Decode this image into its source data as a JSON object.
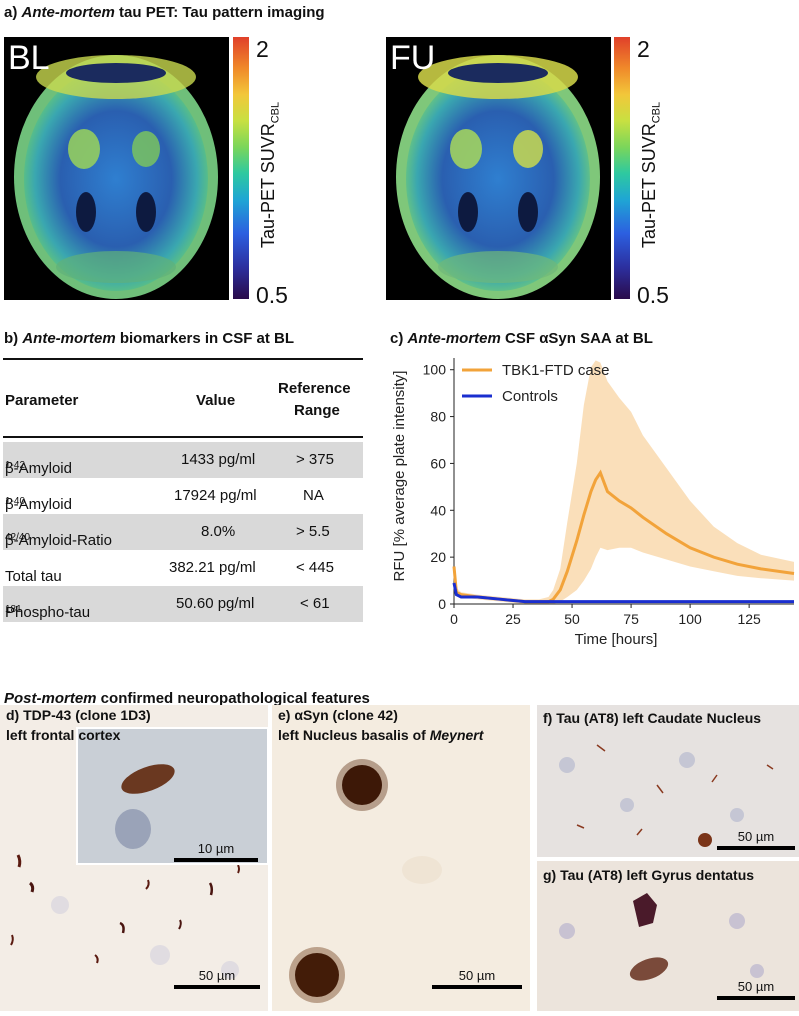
{
  "section_a": {
    "title_prefix": "a) ",
    "title_italic": "Ante-mortem",
    "title_rest": " tau PET: Tau pattern imaging",
    "images": [
      {
        "label": "BL"
      },
      {
        "label": "FU"
      }
    ],
    "colorbar": {
      "max": "2",
      "min": "0.5",
      "title_main": "Tau-PET SUVR",
      "title_sub": "CBL",
      "colors": [
        "#2a0b4a",
        "#2c2f9e",
        "#2c5fe0",
        "#1fa6d4",
        "#2ec9a0",
        "#7bd65a",
        "#c8e041",
        "#f2c73a",
        "#f08a2a",
        "#e0402a"
      ]
    }
  },
  "section_b": {
    "title_prefix": "b) ",
    "title_italic": "Ante-mortem",
    "title_rest": " biomarkers in CSF at BL",
    "headers": {
      "parameter": "Parameter",
      "value": "Value",
      "reference_line1": "Reference",
      "reference_line2": "Range"
    },
    "rows": [
      {
        "param": "β-Amyloid",
        "sub": "1-42",
        "value": "1433 pg/ml",
        "ref": "> 375"
      },
      {
        "param": "β-Amyloid",
        "sub": "1-40",
        "value": "17924 pg/ml",
        "ref": "NA"
      },
      {
        "param": "β-Amyloid-Ratio",
        "sub": "42/40",
        "value": "8.0%",
        "ref": "> 5.5"
      },
      {
        "param": "Total tau",
        "sub": "",
        "value": "382.21 pg/ml",
        "ref": "< 445"
      },
      {
        "param": "Phospho-tau",
        "sub": "181",
        "value": "50.60 pg/ml",
        "ref": "< 61"
      }
    ]
  },
  "section_c": {
    "title_prefix": "c) ",
    "title_italic": "Ante-mortem",
    "title_rest": " CSF αSyn SAA at BL"
  },
  "chart_data": {
    "type": "line",
    "title": "Ante-mortem CSF αSyn SAA at BL",
    "xlabel": "Time [hours]",
    "ylabel": "RFU [% average plate intensity]",
    "xlim": [
      0,
      144
    ],
    "ylim": [
      0,
      105
    ],
    "xticks": [
      0,
      25,
      50,
      75,
      100,
      125
    ],
    "yticks": [
      0,
      20,
      40,
      60,
      80,
      100
    ],
    "legend_position": "top-left",
    "series": [
      {
        "name": "TBK1-FTD case",
        "color": "#f2a33a",
        "x": [
          0,
          1,
          3,
          10,
          20,
          30,
          36,
          40,
          42,
          45,
          48,
          52,
          55,
          58,
          60,
          62,
          65,
          70,
          75,
          80,
          90,
          100,
          110,
          120,
          130,
          144
        ],
        "y": [
          16,
          5,
          4,
          3,
          2,
          1,
          1,
          1,
          2,
          6,
          14,
          27,
          38,
          48,
          53,
          56,
          48,
          44,
          41,
          37,
          30,
          24,
          20,
          17,
          15,
          13
        ],
        "upper": [
          16,
          7,
          5,
          4,
          3,
          2,
          2,
          3,
          6,
          15,
          35,
          60,
          85,
          101,
          104,
          103,
          95,
          88,
          82,
          72,
          58,
          44,
          33,
          26,
          21,
          18
        ],
        "lower": [
          16,
          4,
          3,
          2,
          1,
          0,
          0,
          0,
          0,
          1,
          3,
          6,
          10,
          15,
          20,
          24,
          23,
          24,
          24,
          22,
          19,
          16,
          14,
          12,
          11,
          10
        ]
      },
      {
        "name": "Controls",
        "color": "#1a2ecf",
        "x": [
          0,
          1,
          3,
          10,
          20,
          30,
          40,
          60,
          80,
          100,
          120,
          144
        ],
        "y": [
          9,
          4,
          3,
          3,
          2,
          1,
          1,
          1,
          1,
          1,
          1,
          1
        ]
      }
    ]
  },
  "section_post": {
    "title_italic": "Post-mortem",
    "title_rest": " confirmed neuropathological features"
  },
  "panels": {
    "d": {
      "line1": "d) TDP-43 (clone 1D3)",
      "line2": "left frontal cortex",
      "scale_main": "50 µm",
      "scale_inset": "10 µm"
    },
    "e": {
      "line1": "e) αSyn (clone 42)",
      "line2_prefix": "left Nucleus basalis of ",
      "line2_italic": "Meynert",
      "scale": "50 µm"
    },
    "f": {
      "line1": "f) Tau (AT8) left Caudate Nucleus",
      "scale": "50 µm"
    },
    "g": {
      "line1": "g) Tau (AT8) left Gyrus dentatus",
      "scale": "50 µm"
    }
  }
}
